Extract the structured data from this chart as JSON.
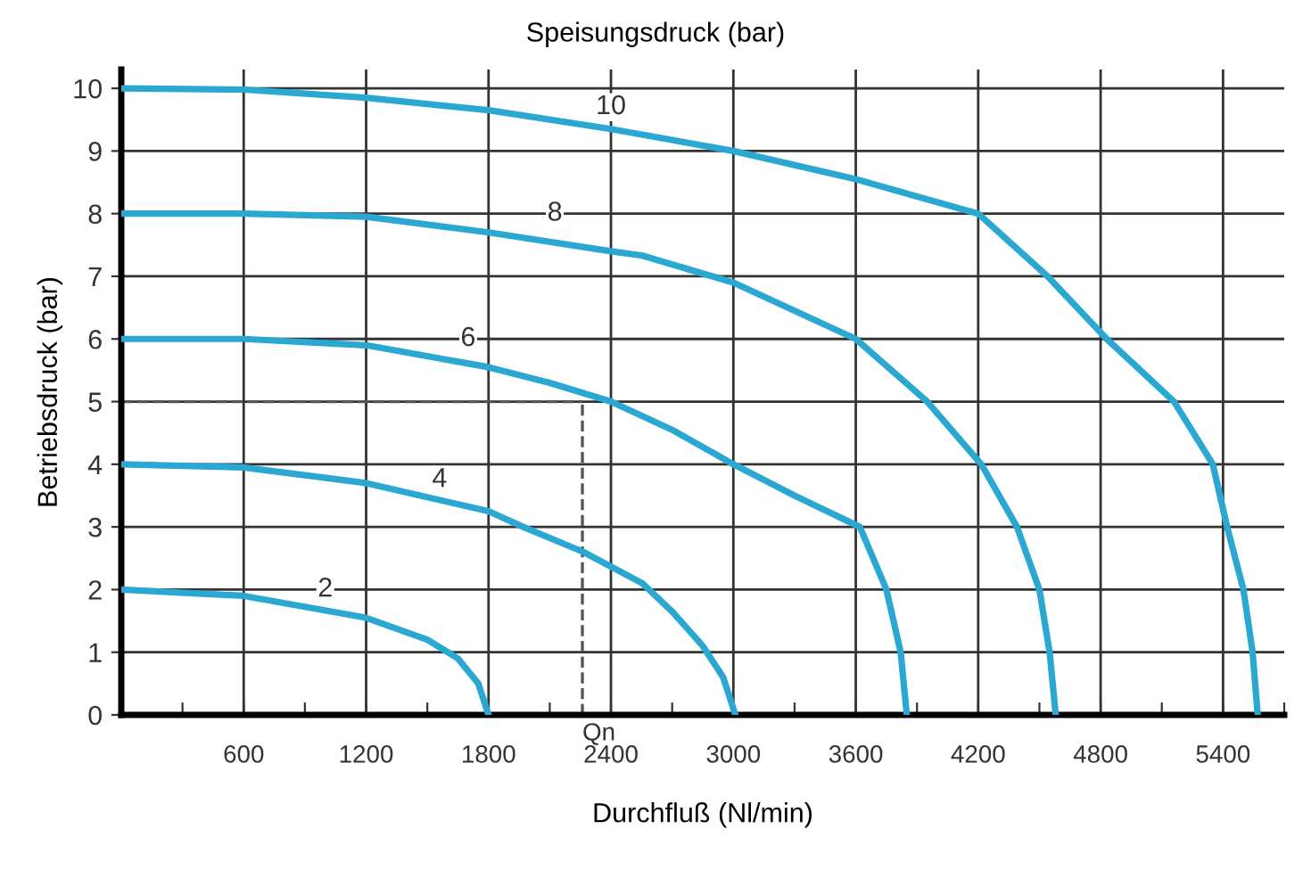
{
  "chart_data": {
    "type": "line",
    "title": "Speisungsdruck (bar)",
    "xlabel": "Durchfluß (Nl/min)",
    "ylabel": "Betriebsdruck (bar)",
    "xlim": [
      0,
      5700
    ],
    "ylim": [
      0,
      10.3
    ],
    "xticks": [
      {
        "value": 300,
        "label": null
      },
      600,
      {
        "value": 900,
        "label": null
      },
      1200,
      {
        "value": 1500,
        "label": null
      },
      1800,
      {
        "value": 2100,
        "label": null
      },
      2400,
      {
        "value": 2700,
        "label": null
      },
      3000,
      {
        "value": 3300,
        "label": null
      },
      3600,
      {
        "value": 3900,
        "label": null
      },
      4200,
      {
        "value": 4500,
        "label": null
      },
      4800,
      {
        "value": 5100,
        "label": null
      },
      5400,
      {
        "value": 5700,
        "label": null
      }
    ],
    "yticks": [
      0,
      1,
      2,
      3,
      4,
      5,
      6,
      7,
      8,
      9,
      10
    ],
    "grid": true,
    "marker": "none",
    "line_style": "solid",
    "series": [
      {
        "color": "#2aa8d2",
        "x": [
          0,
          600,
          1200,
          1800,
          2400,
          3000,
          3600,
          4200,
          4540,
          4830,
          5160,
          5350,
          5420,
          5500,
          5545,
          5570
        ],
        "values": [
          10,
          9.98,
          9.85,
          9.65,
          9.35,
          9.0,
          8.55,
          8.0,
          7,
          6,
          5,
          4,
          3,
          2,
          1,
          0
        ]
      },
      {
        "color": "#2aa8d2",
        "x": [
          0,
          600,
          1200,
          1800,
          2400,
          2554,
          3000,
          3600,
          3950,
          4215,
          4390,
          4500,
          4550,
          4580
        ],
        "values": [
          8,
          8,
          7.95,
          7.7,
          7.4,
          7.33,
          6.9,
          6,
          5,
          4,
          3,
          2,
          1,
          0
        ]
      },
      {
        "color": "#2aa8d2",
        "x": [
          0,
          600,
          1200,
          1800,
          2100,
          2400,
          2700,
          3000,
          3300,
          3620,
          3750,
          3820,
          3850
        ],
        "values": [
          6,
          6,
          5.9,
          5.55,
          5.3,
          5.0,
          4.55,
          4.0,
          3.5,
          3,
          2,
          1,
          0
        ]
      },
      {
        "color": "#2aa8d2",
        "x": [
          0,
          600,
          1200,
          1800,
          1970,
          2265,
          2554,
          2700,
          2850,
          2950,
          3010
        ],
        "values": [
          4,
          3.95,
          3.7,
          3.25,
          3,
          2.6,
          2.1,
          1.65,
          1.1,
          0.6,
          0
        ]
      },
      {
        "color": "#2aa8d2",
        "x": [
          0,
          600,
          1200,
          1500,
          1650,
          1750,
          1800
        ],
        "values": [
          2,
          1.9,
          1.55,
          1.2,
          0.9,
          0.5,
          0
        ]
      }
    ],
    "ref_lines": [
      {
        "axis": "x",
        "value": 2260,
        "label": "Qn",
        "line_style": "dashed",
        "color": "#555555"
      },
      {
        "axis": "y",
        "value": 5,
        "line_style": "dashed",
        "color": "#555555"
      }
    ],
    "annotations": [
      {
        "text": "10",
        "x": 2400,
        "y": 9.7
      },
      {
        "text": "8",
        "x": 2125,
        "y": 8
      },
      {
        "text": "6",
        "x": 1700,
        "y": 6
      },
      {
        "text": "4",
        "x": 1560,
        "y": 3.75
      },
      {
        "text": "2",
        "x": 1000,
        "y": 2
      }
    ]
  }
}
